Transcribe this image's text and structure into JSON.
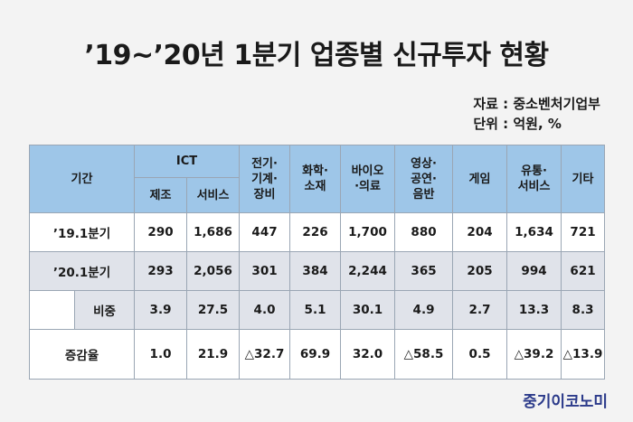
{
  "title": "’19~’20년 1분기 업종별 신규투자 현황",
  "source": "자료 : 중소벤처기업부",
  "unit": "단위 : 억원, %",
  "headers": {
    "period": "기간",
    "ict": "ICT",
    "ict_manufacturing": "제조",
    "ict_service": "서비스",
    "electrical": "전기·\n기계·\n장비",
    "chemical": "화학·\n소재",
    "bio": "바이오\n·의료",
    "media": "영상·\n공연·\n음반",
    "game": "게임",
    "distribution": "유통·\n서비스",
    "other": "기타"
  },
  "rows": [
    {
      "label": "’19.1분기",
      "values": [
        "290",
        "1,686",
        "447",
        "226",
        "1,700",
        "880",
        "204",
        "1,634",
        "721"
      ]
    },
    {
      "label": "’20.1분기",
      "values": [
        "293",
        "2,056",
        "301",
        "384",
        "2,244",
        "365",
        "205",
        "994",
        "621"
      ]
    },
    {
      "label": "비중",
      "values": [
        "3.9",
        "27.5",
        "4.0",
        "5.1",
        "30.1",
        "4.9",
        "2.7",
        "13.3",
        "8.3"
      ]
    },
    {
      "label": "증감율",
      "values": [
        "1.0",
        "21.9",
        "△32.7",
        "69.9",
        "32.0",
        "△58.5",
        "0.5",
        "△39.2",
        "△13.9"
      ]
    }
  ],
  "brand": "중기이코노미",
  "colors": {
    "header_bg": "#9ec6e8",
    "highlight_row_bg": "#e0e3ea",
    "brand": "#2b3a8a"
  }
}
